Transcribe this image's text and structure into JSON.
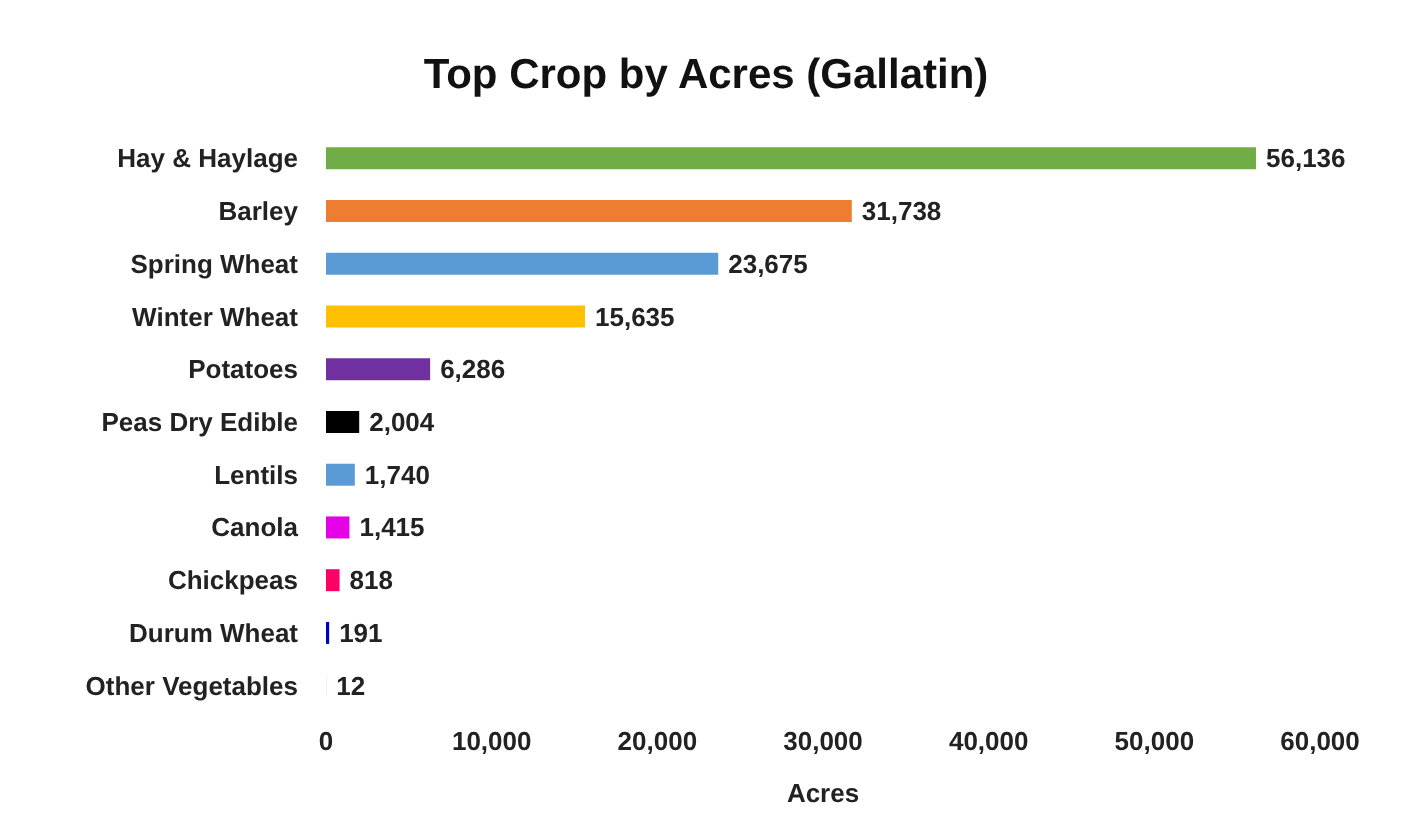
{
  "chart_data": {
    "type": "bar",
    "orientation": "horizontal",
    "title": "Top Crop by Acres (Gallatin)",
    "xlabel": "Acres",
    "categories": [
      "Hay & Haylage",
      "Barley",
      "Spring Wheat",
      "Winter Wheat",
      "Potatoes",
      "Peas Dry Edible",
      "Lentils",
      "Canola",
      "Chickpeas",
      "Durum Wheat",
      "Other Vegetables"
    ],
    "values": [
      56136,
      31738,
      23675,
      15635,
      6286,
      2004,
      1740,
      1415,
      818,
      191,
      12
    ],
    "colors": [
      "#70ad47",
      "#ed7d31",
      "#5b9bd5",
      "#ffc000",
      "#7030a0",
      "#000000",
      "#5b9bd5",
      "#e600e6",
      "#ff0066",
      "#0000cc",
      "#a9d18e"
    ],
    "xlim": [
      0,
      60000
    ],
    "xticks": [
      {
        "value": 0,
        "label": "0"
      },
      {
        "value": 10000,
        "label": "10,000"
      },
      {
        "value": 20000,
        "label": "20,000"
      },
      {
        "value": 30000,
        "label": "30,000"
      },
      {
        "value": 40000,
        "label": "40,000"
      },
      {
        "value": 50000,
        "label": "50,000"
      },
      {
        "value": 60000,
        "label": "60,000"
      }
    ],
    "value_labels": [
      "56,136",
      "31,738",
      "23,675",
      "15,635",
      "6,286",
      "2,004",
      "1,740",
      "1,415",
      "818",
      "191",
      "12"
    ],
    "grid": false
  }
}
